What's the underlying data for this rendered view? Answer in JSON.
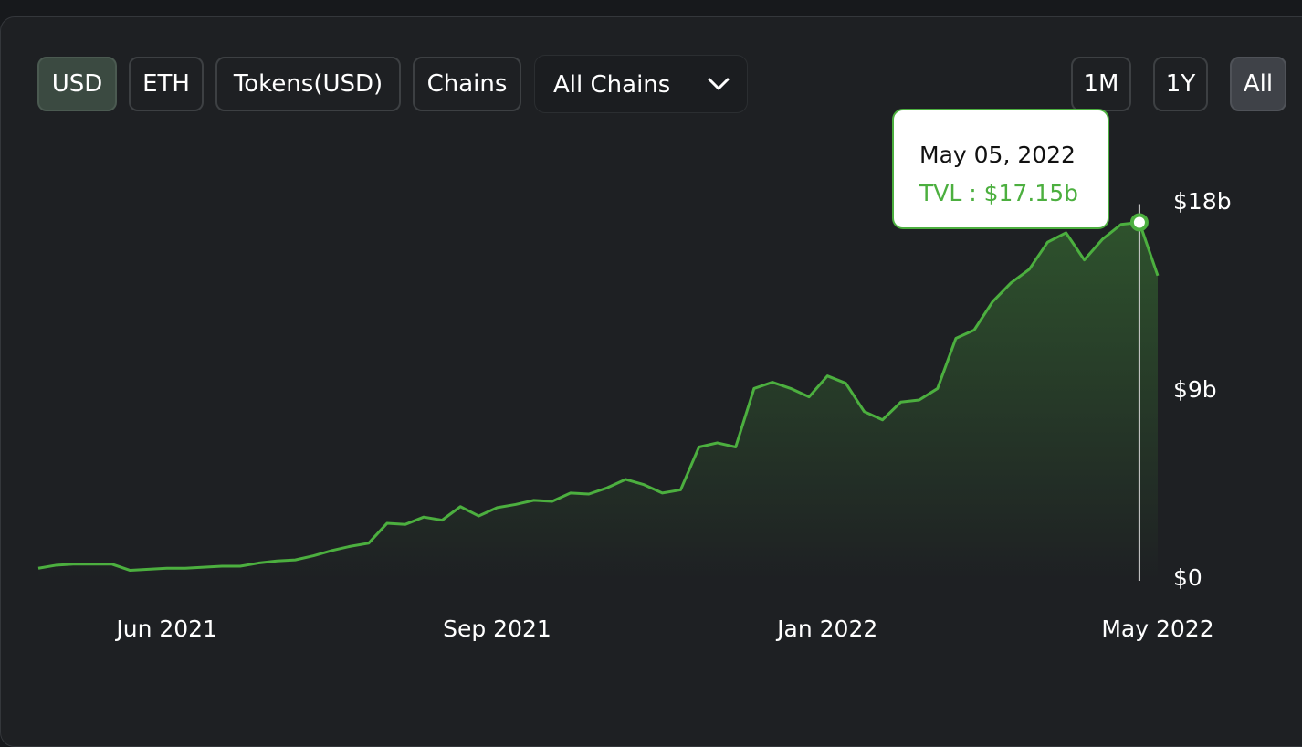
{
  "controls": {
    "denominations": [
      "USD",
      "ETH",
      "Tokens(USD)",
      "Chains"
    ],
    "chain_select": "All Chains",
    "ranges": [
      "1M",
      "1Y",
      "All"
    ]
  },
  "tooltip": {
    "date": "May 05, 2022",
    "text": "TVL : $17.15b"
  },
  "chart_data": {
    "type": "line",
    "categories": [
      null,
      null,
      null,
      null,
      null,
      null,
      null,
      "Jun 2021",
      null,
      null,
      null,
      null,
      null,
      null,
      null,
      null,
      null,
      null,
      null,
      null,
      null,
      null,
      null,
      null,
      null,
      "Sep 2021",
      null,
      null,
      null,
      null,
      null,
      null,
      null,
      null,
      null,
      null,
      null,
      null,
      null,
      null,
      null,
      null,
      null,
      "Jan 2022",
      null,
      null,
      null,
      null,
      null,
      null,
      null,
      null,
      null,
      null,
      null,
      null,
      null,
      null,
      null,
      null,
      null,
      "May 2022"
    ],
    "series": [
      {
        "name": "TVL",
        "color": "#4caf3f",
        "values": [
          0.6,
          0.75,
          0.8,
          0.8,
          0.8,
          0.5,
          0.55,
          0.6,
          0.6,
          0.65,
          0.7,
          0.7,
          0.85,
          0.95,
          1.0,
          1.2,
          1.45,
          1.65,
          1.8,
          2.75,
          2.7,
          3.05,
          2.9,
          3.55,
          3.1,
          3.5,
          3.65,
          3.85,
          3.8,
          4.2,
          4.15,
          4.45,
          4.85,
          4.6,
          4.2,
          4.35,
          6.4,
          6.6,
          6.4,
          9.2,
          9.5,
          9.2,
          8.8,
          9.8,
          9.45,
          8.1,
          7.7,
          8.55,
          8.65,
          9.2,
          11.6,
          12.0,
          13.35,
          14.25,
          14.9,
          16.2,
          16.65,
          15.35,
          16.35,
          17.05,
          17.15,
          14.6
        ]
      }
    ],
    "ylim": [
      0,
      18
    ],
    "yticks": [
      {
        "value": 0,
        "label": "$0"
      },
      {
        "value": 9,
        "label": "$9b"
      },
      {
        "value": 18,
        "label": "$18b"
      }
    ],
    "grid": false
  }
}
